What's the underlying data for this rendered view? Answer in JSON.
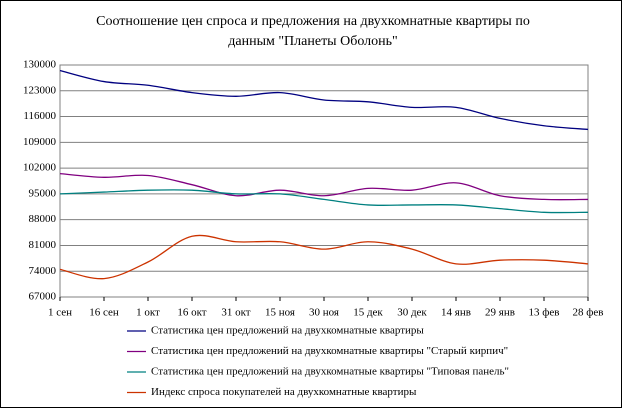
{
  "chart_data": {
    "type": "line",
    "title": [
      "Соотношение цен спроса и предложения на двухкомнатные квартиры      по",
      "данным \"Планеты Оболонь\""
    ],
    "categories": [
      "1 сен",
      "16 сен",
      "1 окт",
      "16 окт",
      "31 окт",
      "15 ноя",
      "30 ноя",
      "15 дек",
      "30 дек",
      "14 янв",
      "29 янв",
      "13 фев",
      "28 фев"
    ],
    "series": [
      {
        "name": "Статистика цен предложений на двухкомнатные квартиры",
        "color": "#000080",
        "values": [
          128500,
          125500,
          124500,
          122500,
          121500,
          122500,
          120500,
          120000,
          118500,
          118500,
          115500,
          113500,
          112500
        ]
      },
      {
        "name": "Статистика цен предложений на двухкомнатные квартиры \"Старый кирпич\"",
        "color": "#800080",
        "values": [
          100500,
          99500,
          100000,
          97500,
          94500,
          96000,
          94500,
          96500,
          96000,
          98000,
          94500,
          93500,
          93500
        ]
      },
      {
        "name": "Статистика цен предложений на двухкомнатные квартиры \"Типовая панель\"",
        "color": "#008080",
        "values": [
          95000,
          95500,
          96000,
          96000,
          95000,
          95000,
          93500,
          92000,
          92000,
          92000,
          91000,
          90000,
          90000
        ]
      },
      {
        "name": "Индекс спроса покупателей на двухкомнатные квартиры",
        "color": "#cc3300",
        "values": [
          74500,
          72000,
          76500,
          83500,
          82000,
          82000,
          80000,
          82000,
          80000,
          76000,
          77000,
          77000,
          76000
        ]
      }
    ],
    "ylim": [
      67000,
      130000
    ],
    "yticks": [
      67000,
      74000,
      81000,
      88000,
      95000,
      102000,
      109000,
      116000,
      123000,
      130000
    ],
    "grid": true
  }
}
